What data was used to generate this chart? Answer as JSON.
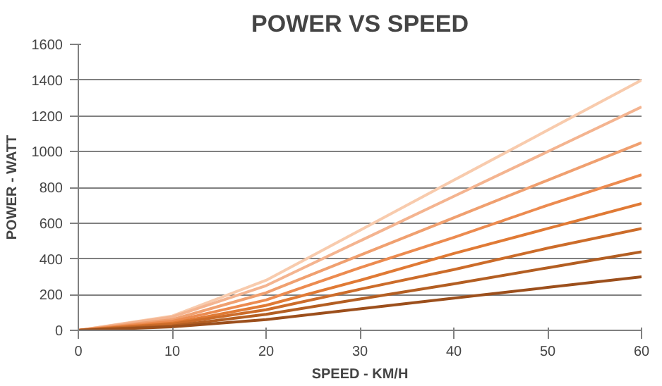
{
  "chart_data": {
    "type": "line",
    "title": "POWER VS SPEED",
    "xlabel": "SPEED - KM/H",
    "ylabel": "POWER - WATT",
    "x": [
      0,
      10,
      20,
      30,
      40,
      50,
      60
    ],
    "series": [
      {
        "color": "#f8cbad",
        "values": [
          0,
          80,
          280,
          560,
          840,
          1120,
          1400
        ]
      },
      {
        "color": "#f4b490",
        "values": [
          0,
          75,
          250,
          500,
          750,
          1000,
          1250
        ]
      },
      {
        "color": "#f0a070",
        "values": [
          0,
          60,
          210,
          420,
          630,
          840,
          1050
        ]
      },
      {
        "color": "#ec8b50",
        "values": [
          0,
          50,
          170,
          350,
          520,
          700,
          870
        ]
      },
      {
        "color": "#e07a35",
        "values": [
          0,
          40,
          140,
          280,
          430,
          570,
          710
        ]
      },
      {
        "color": "#cc6c2a",
        "values": [
          0,
          35,
          115,
          230,
          340,
          460,
          570
        ]
      },
      {
        "color": "#b35e22",
        "values": [
          0,
          25,
          90,
          175,
          260,
          350,
          440
        ]
      },
      {
        "color": "#9c4f1c",
        "values": [
          0,
          20,
          60,
          120,
          180,
          240,
          300
        ]
      }
    ],
    "xlim": [
      0,
      60
    ],
    "xticks": [
      0,
      10,
      20,
      30,
      40,
      50,
      60
    ],
    "ylim": [
      0,
      1600
    ],
    "yticks": [
      0,
      200,
      400,
      600,
      800,
      1000,
      1200,
      1400,
      1600
    ],
    "grid": "y",
    "marker": "none",
    "line_style": "solid"
  }
}
